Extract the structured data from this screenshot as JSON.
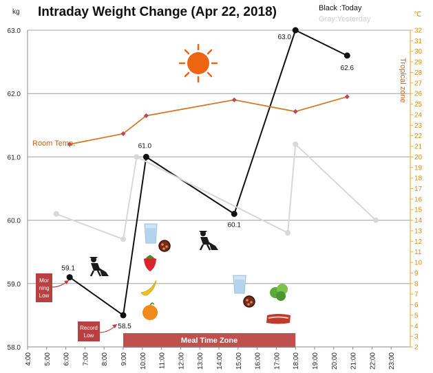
{
  "chart_data": {
    "type": "line",
    "title": "Intraday Weight Change (Apr 22, 2018)",
    "ylabel": "kg",
    "y2label": "℃",
    "ylim": [
      58.0,
      63.0
    ],
    "y_ticks": [
      "58.0",
      "59.0",
      "60.0",
      "61.0",
      "62.0",
      "63.0"
    ],
    "y2lim": [
      2,
      32
    ],
    "y2_ticks": [
      "2",
      "3",
      "4",
      "5",
      "6",
      "7",
      "8",
      "9",
      "10",
      "11",
      "12",
      "13",
      "14",
      "15",
      "16",
      "17",
      "18",
      "19",
      "20",
      "21",
      "22",
      "23",
      "24",
      "25",
      "26",
      "27",
      "28",
      "29",
      "30",
      "31",
      "32"
    ],
    "xlim": [
      4,
      24
    ],
    "x_ticks": [
      "4:00",
      "5:00",
      "6:00",
      "7:00",
      "8:00",
      "9:00",
      "10:00",
      "11:00",
      "12:00",
      "13:00",
      "14:00",
      "15:00",
      "16:00",
      "17:00",
      "18:00",
      "19:00",
      "20:00",
      "21:00",
      "22:00",
      "23:00"
    ],
    "legend": {
      "today": "Black :Today",
      "yesterday": "Gray:Yesterday"
    },
    "series": [
      {
        "key": "today",
        "color": "#111111",
        "points": [
          {
            "x": 6.2,
            "y": 59.1,
            "label": "59.1"
          },
          {
            "x": 9.0,
            "y": 58.5,
            "label": "58.5"
          },
          {
            "x": 10.2,
            "y": 61.0,
            "label": "61.0"
          },
          {
            "x": 14.8,
            "y": 60.1,
            "label": "60.1"
          },
          {
            "x": 18.0,
            "y": 63.0,
            "label": "63.0"
          },
          {
            "x": 20.7,
            "y": 62.6,
            "label": "62.6"
          }
        ]
      },
      {
        "key": "yesterday",
        "color": "#d8d8d8",
        "points": [
          {
            "x": 5.5,
            "y": 60.1
          },
          {
            "x": 9.0,
            "y": 59.7
          },
          {
            "x": 9.7,
            "y": 61.0
          },
          {
            "x": 17.6,
            "y": 59.8
          },
          {
            "x": 18.0,
            "y": 61.2
          },
          {
            "x": 22.2,
            "y": 60.0
          }
        ]
      },
      {
        "key": "room_temp",
        "color": "#d6782a",
        "axis": "right",
        "points": [
          {
            "x": 6.2,
            "y": 21.2
          },
          {
            "x": 9.0,
            "y": 22.2
          },
          {
            "x": 10.2,
            "y": 23.9
          },
          {
            "x": 14.8,
            "y": 25.4
          },
          {
            "x": 18.0,
            "y": 24.3
          },
          {
            "x": 20.7,
            "y": 25.7
          }
        ]
      }
    ],
    "annotations": {
      "room_temp": "Room Temp.",
      "tropical_zone": "Tropical zone",
      "morning_low": [
        "Mor",
        "ning",
        "Low"
      ],
      "record_low": [
        "Record",
        "Low"
      ],
      "meal_time_zone": "Meal Time Zone"
    },
    "meal_zone": [
      9.0,
      18.0
    ],
    "tropical_threshold": 25,
    "colors": {
      "today": "#111111",
      "yesterday": "#d8d8d8",
      "temperature": "#d6782a",
      "tropical_axis": "#f0b040",
      "callout": "#b84040",
      "sun": "#ee6511"
    },
    "icons": [
      "sun-icon",
      "water-glass-icon",
      "grapes-icon",
      "strawberry-icon",
      "banana-icon",
      "orange-icon",
      "gardening-person-icon",
      "lettuce-icon",
      "steak-icon"
    ],
    "grid": true
  }
}
